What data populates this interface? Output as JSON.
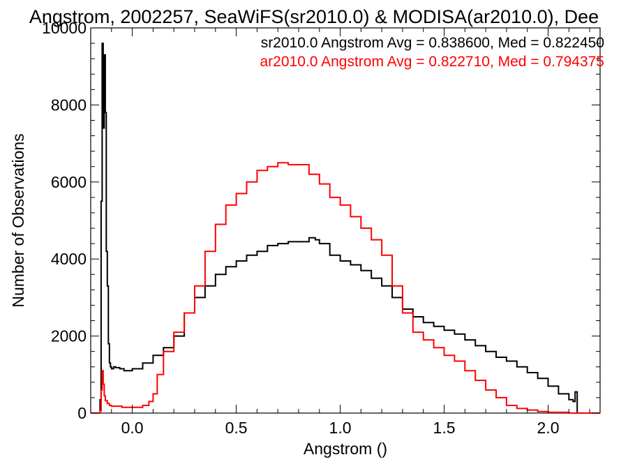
{
  "colors": {
    "background": "#ffffff",
    "axes": "#000000",
    "sr_series": "#000000",
    "ar_series": "#ff0000"
  },
  "chart_data": {
    "type": "line",
    "step": true,
    "title": "Angstrom, 2002257, SeaWiFS(sr2010.0) & MODISA(ar2010.0), Dee",
    "xlabel": "Angstrom ()",
    "ylabel": "Number of Observations",
    "xlim": [
      -0.2,
      2.25
    ],
    "ylim": [
      0,
      10000
    ],
    "xticks": [
      0.0,
      0.5,
      1.0,
      1.5,
      2.0
    ],
    "xtick_labels": [
      "0.0",
      "0.5",
      "1.0",
      "1.5",
      "2.0"
    ],
    "yticks": [
      0,
      2000,
      4000,
      6000,
      8000,
      10000
    ],
    "ytick_labels": [
      "0",
      "2000",
      "4000",
      "6000",
      "8000",
      "10000"
    ],
    "grid": false,
    "legend_placement": "top-right",
    "annotations": [
      {
        "text": "sr2010.0 Angstrom Avg = 0.838600, Med = 0.822450",
        "color": "#000000"
      },
      {
        "text": "ar2010.0 Angstrom Avg = 0.822710, Med = 0.794375",
        "color": "#ff0000"
      }
    ],
    "series": [
      {
        "color": "#000000",
        "x": [
          -0.2,
          -0.16,
          -0.155,
          -0.15,
          -0.145,
          -0.14,
          -0.135,
          -0.13,
          -0.125,
          -0.12,
          -0.115,
          -0.11,
          -0.105,
          -0.1,
          -0.09,
          -0.08,
          -0.06,
          -0.04,
          -0.02,
          0.0,
          0.05,
          0.1,
          0.15,
          0.2,
          0.25,
          0.3,
          0.35,
          0.4,
          0.45,
          0.5,
          0.55,
          0.6,
          0.65,
          0.7,
          0.75,
          0.8,
          0.85,
          0.88,
          0.9,
          0.95,
          1.0,
          1.05,
          1.1,
          1.15,
          1.2,
          1.25,
          1.3,
          1.35,
          1.4,
          1.45,
          1.5,
          1.55,
          1.6,
          1.65,
          1.7,
          1.75,
          1.8,
          1.85,
          1.9,
          1.95,
          2.0,
          2.05,
          2.1,
          2.12,
          2.13,
          2.14,
          2.25
        ],
        "y": [
          0,
          0,
          350,
          5500,
          9600,
          7400,
          9300,
          7800,
          4200,
          3300,
          1800,
          1300,
          1200,
          1150,
          1200,
          1180,
          1150,
          1100,
          1100,
          1150,
          1300,
          1500,
          1700,
          2000,
          2600,
          3000,
          3300,
          3600,
          3800,
          3950,
          4100,
          4200,
          4350,
          4400,
          4450,
          4450,
          4550,
          4500,
          4400,
          4100,
          3950,
          3850,
          3700,
          3500,
          3300,
          3000,
          2700,
          2500,
          2350,
          2250,
          2150,
          2050,
          1900,
          1750,
          1600,
          1450,
          1350,
          1200,
          1050,
          900,
          700,
          500,
          350,
          300,
          550,
          0,
          0
        ]
      },
      {
        "color": "#ff0000",
        "x": [
          -0.2,
          -0.16,
          -0.155,
          -0.15,
          -0.145,
          -0.14,
          -0.135,
          -0.13,
          -0.12,
          -0.11,
          -0.1,
          -0.05,
          0.0,
          0.05,
          0.08,
          0.1,
          0.12,
          0.15,
          0.2,
          0.25,
          0.3,
          0.35,
          0.4,
          0.45,
          0.5,
          0.55,
          0.6,
          0.65,
          0.7,
          0.75,
          0.8,
          0.85,
          0.9,
          0.95,
          1.0,
          1.05,
          1.1,
          1.15,
          1.2,
          1.25,
          1.3,
          1.35,
          1.4,
          1.45,
          1.5,
          1.55,
          1.6,
          1.65,
          1.7,
          1.75,
          1.8,
          1.85,
          1.9,
          1.95,
          2.0,
          2.1,
          2.25
        ],
        "y": [
          0,
          0,
          60,
          600,
          1100,
          750,
          450,
          320,
          250,
          200,
          180,
          150,
          150,
          200,
          300,
          500,
          1000,
          1600,
          2100,
          2600,
          3300,
          4200,
          4900,
          5400,
          5700,
          6000,
          6300,
          6400,
          6500,
          6450,
          6450,
          6200,
          5950,
          5600,
          5400,
          5100,
          4800,
          4500,
          4100,
          3300,
          2600,
          2100,
          1900,
          1700,
          1500,
          1350,
          1100,
          850,
          600,
          400,
          200,
          120,
          80,
          40,
          20,
          0,
          0
        ]
      }
    ]
  }
}
